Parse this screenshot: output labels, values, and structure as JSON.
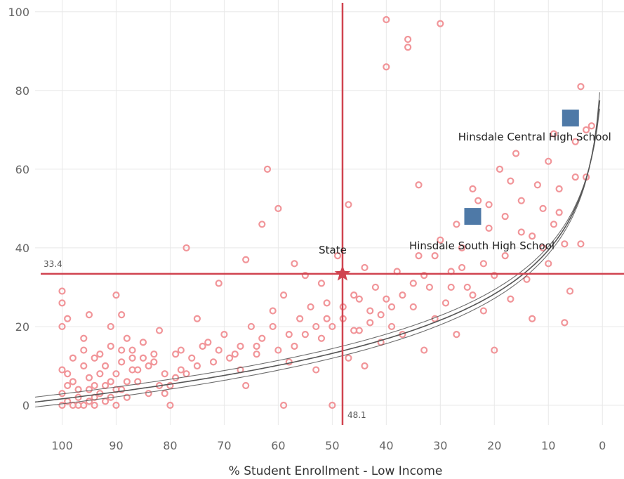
{
  "chart_data": {
    "type": "scatter",
    "xlabel": "% Student Enrollment - Low Income",
    "ylabel": "",
    "x_reversed": true,
    "xlim": [
      105,
      -4
    ],
    "ylim": [
      -5,
      103
    ],
    "x_ticks": [
      100,
      90,
      80,
      70,
      60,
      50,
      40,
      30,
      20,
      10,
      0
    ],
    "y_ticks": [
      0,
      20,
      40,
      60,
      80,
      100
    ],
    "grid": true,
    "reference_lines": {
      "vertical": {
        "x": 48.1,
        "label": "48.1"
      },
      "horizontal": {
        "y": 33.4,
        "label": "33.4"
      }
    },
    "state_marker": {
      "x": 48.1,
      "y": 33.4,
      "label": "State"
    },
    "highlighted": [
      {
        "label": "Hinsdale Central High School",
        "x": 5.9,
        "y": 73
      },
      {
        "label": "Hinsdale South High School",
        "x": 24,
        "y": 48
      }
    ],
    "colors": {
      "points": "#f19599",
      "reference": "#d0434f",
      "highlight": "#4e79a7",
      "trend": "#555555",
      "grid": "#e8e8e8"
    },
    "points": [
      [
        100,
        0
      ],
      [
        99,
        1
      ],
      [
        98,
        0
      ],
      [
        97,
        2
      ],
      [
        96,
        0
      ],
      [
        95,
        1
      ],
      [
        94,
        0
      ],
      [
        93,
        3
      ],
      [
        100,
        3
      ],
      [
        99,
        5
      ],
      [
        97,
        0
      ],
      [
        95,
        4
      ],
      [
        94,
        2
      ],
      [
        92,
        1
      ],
      [
        91,
        6
      ],
      [
        90,
        0
      ],
      [
        89,
        4
      ],
      [
        88,
        2
      ],
      [
        92,
        5
      ],
      [
        90,
        8
      ],
      [
        100,
        9
      ],
      [
        98,
        12
      ],
      [
        96,
        10
      ],
      [
        94,
        12
      ],
      [
        93,
        13
      ],
      [
        91,
        15
      ],
      [
        89,
        11
      ],
      [
        87,
        14
      ],
      [
        86,
        9
      ],
      [
        85,
        12
      ],
      [
        100,
        20
      ],
      [
        99,
        22
      ],
      [
        100,
        26
      ],
      [
        100,
        29
      ],
      [
        96,
        17
      ],
      [
        95,
        23
      ],
      [
        90,
        28
      ],
      [
        89,
        23
      ],
      [
        91,
        20
      ],
      [
        88,
        17
      ],
      [
        86,
        6
      ],
      [
        84,
        10
      ],
      [
        83,
        13
      ],
      [
        82,
        19
      ],
      [
        81,
        3
      ],
      [
        80,
        0
      ],
      [
        80,
        5
      ],
      [
        78,
        14
      ],
      [
        77,
        8
      ],
      [
        76,
        12
      ],
      [
        77,
        40
      ],
      [
        75,
        22
      ],
      [
        74,
        15
      ],
      [
        72,
        11
      ],
      [
        71,
        31
      ],
      [
        70,
        18
      ],
      [
        68,
        13
      ],
      [
        67,
        9
      ],
      [
        66,
        37
      ],
      [
        65,
        20
      ],
      [
        66,
        5
      ],
      [
        64,
        15
      ],
      [
        63,
        46
      ],
      [
        62,
        60
      ],
      [
        61,
        24
      ],
      [
        60,
        50
      ],
      [
        60,
        14
      ],
      [
        59,
        0
      ],
      [
        59,
        28
      ],
      [
        58,
        18
      ],
      [
        57,
        36
      ],
      [
        56,
        22
      ],
      [
        55,
        33
      ],
      [
        54,
        25
      ],
      [
        53,
        9
      ],
      [
        52,
        17
      ],
      [
        52,
        31
      ],
      [
        51,
        26
      ],
      [
        50,
        0
      ],
      [
        50,
        20
      ],
      [
        49,
        38
      ],
      [
        48,
        22
      ],
      [
        47,
        51
      ],
      [
        47,
        12
      ],
      [
        46,
        28
      ],
      [
        45,
        19
      ],
      [
        44,
        35
      ],
      [
        44,
        10
      ],
      [
        43,
        24
      ],
      [
        42,
        30
      ],
      [
        41,
        16
      ],
      [
        40,
        98
      ],
      [
        40,
        86
      ],
      [
        40,
        27
      ],
      [
        39,
        20
      ],
      [
        38,
        34
      ],
      [
        37,
        18
      ],
      [
        36,
        91
      ],
      [
        36,
        93
      ],
      [
        35,
        25
      ],
      [
        34,
        38
      ],
      [
        34,
        56
      ],
      [
        33,
        14
      ],
      [
        32,
        30
      ],
      [
        31,
        22
      ],
      [
        30,
        97
      ],
      [
        30,
        42
      ],
      [
        29,
        26
      ],
      [
        28,
        34
      ],
      [
        27,
        18
      ],
      [
        27,
        46
      ],
      [
        26,
        40
      ],
      [
        25,
        30
      ],
      [
        24,
        28
      ],
      [
        23,
        52
      ],
      [
        22,
        36
      ],
      [
        22,
        24
      ],
      [
        21,
        45
      ],
      [
        20,
        33
      ],
      [
        20,
        14
      ],
      [
        19,
        60
      ],
      [
        18,
        38
      ],
      [
        17,
        27
      ],
      [
        17,
        57
      ],
      [
        16,
        64
      ],
      [
        15,
        44
      ],
      [
        14,
        32
      ],
      [
        13,
        22
      ],
      [
        12,
        56
      ],
      [
        11,
        40
      ],
      [
        10,
        62
      ],
      [
        10,
        36
      ],
      [
        9,
        69
      ],
      [
        8,
        49
      ],
      [
        7,
        21
      ],
      [
        7,
        41
      ],
      [
        6,
        29
      ],
      [
        5,
        58
      ],
      [
        4,
        81
      ],
      [
        3,
        58
      ],
      [
        4,
        41
      ],
      [
        3,
        70
      ],
      [
        2,
        71
      ],
      [
        5,
        67
      ],
      [
        6,
        72
      ],
      [
        8,
        55
      ],
      [
        9,
        46
      ],
      [
        11,
        50
      ],
      [
        13,
        43
      ],
      [
        15,
        52
      ],
      [
        18,
        48
      ],
      [
        21,
        51
      ],
      [
        24,
        55
      ],
      [
        26,
        35
      ],
      [
        28,
        30
      ],
      [
        31,
        38
      ],
      [
        33,
        33
      ],
      [
        35,
        31
      ],
      [
        37,
        28
      ],
      [
        39,
        25
      ],
      [
        41,
        23
      ],
      [
        43,
        21
      ],
      [
        45,
        27
      ],
      [
        46,
        19
      ],
      [
        48,
        25
      ],
      [
        51,
        22
      ],
      [
        53,
        20
      ],
      [
        55,
        18
      ],
      [
        57,
        15
      ],
      [
        58,
        11
      ],
      [
        61,
        20
      ],
      [
        63,
        17
      ],
      [
        64,
        13
      ],
      [
        67,
        15
      ],
      [
        69,
        12
      ],
      [
        71,
        14
      ],
      [
        73,
        16
      ],
      [
        75,
        10
      ],
      [
        78,
        9
      ],
      [
        79,
        7
      ],
      [
        82,
        5
      ],
      [
        84,
        3
      ],
      [
        85,
        16
      ],
      [
        87,
        9
      ],
      [
        88,
        6
      ],
      [
        90,
        4
      ],
      [
        91,
        2
      ],
      [
        93,
        8
      ],
      [
        95,
        7
      ],
      [
        97,
        4
      ],
      [
        98,
        6
      ],
      [
        99,
        8
      ],
      [
        96,
        14
      ],
      [
        94,
        5
      ],
      [
        92,
        10
      ],
      [
        89,
        14
      ],
      [
        87,
        12
      ],
      [
        83,
        11
      ],
      [
        81,
        8
      ],
      [
        79,
        13
      ]
    ]
  }
}
